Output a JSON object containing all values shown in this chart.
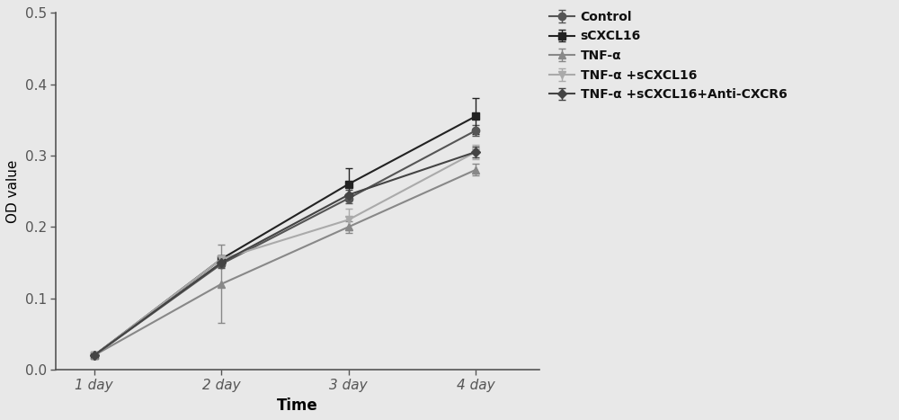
{
  "x": [
    1,
    2,
    3,
    4
  ],
  "x_labels": [
    "1 day",
    "2 day",
    "3 day",
    "4 day"
  ],
  "series": [
    {
      "label": "Control",
      "y": [
        0.02,
        0.148,
        0.24,
        0.335
      ],
      "yerr": [
        0.002,
        0.005,
        0.007,
        0.008
      ],
      "color": "#555555",
      "marker": "o",
      "markersize": 6,
      "linewidth": 1.5,
      "markerfacecolor": "#555555"
    },
    {
      "label": "sCXCL16",
      "y": [
        0.02,
        0.155,
        0.26,
        0.355
      ],
      "yerr": [
        0.002,
        0.005,
        0.022,
        0.025
      ],
      "color": "#222222",
      "marker": "s",
      "markersize": 6,
      "linewidth": 1.5,
      "markerfacecolor": "#222222"
    },
    {
      "label": "TNF-α",
      "y": [
        0.02,
        0.12,
        0.2,
        0.28
      ],
      "yerr": [
        0.002,
        0.055,
        0.008,
        0.008
      ],
      "color": "#888888",
      "marker": "^",
      "markersize": 6,
      "linewidth": 1.5,
      "markerfacecolor": "#888888"
    },
    {
      "label": "TNF-α +sCXCL16",
      "y": [
        0.02,
        0.155,
        0.21,
        0.305
      ],
      "yerr": [
        0.002,
        0.005,
        0.015,
        0.01
      ],
      "color": "#aaaaaa",
      "marker": "v",
      "markersize": 6,
      "linewidth": 1.5,
      "markerfacecolor": "#aaaaaa"
    },
    {
      "label": "TNF-α +sCXCL16+Anti-CXCR6",
      "y": [
        0.02,
        0.15,
        0.245,
        0.305
      ],
      "yerr": [
        0.002,
        0.005,
        0.007,
        0.008
      ],
      "color": "#444444",
      "marker": "D",
      "markersize": 5,
      "linewidth": 1.5,
      "markerfacecolor": "#444444"
    }
  ],
  "xlabel": "Time",
  "ylabel": "OD value",
  "ylim": [
    0.0,
    0.5
  ],
  "yticks": [
    0.0,
    0.1,
    0.2,
    0.3,
    0.4,
    0.5
  ],
  "background_color": "#e8e8e8",
  "legend_fontsize": 10,
  "xlabel_fontsize": 12,
  "ylabel_fontsize": 11,
  "tick_fontsize": 11,
  "figsize": [
    10.0,
    4.67
  ],
  "dpi": 100
}
